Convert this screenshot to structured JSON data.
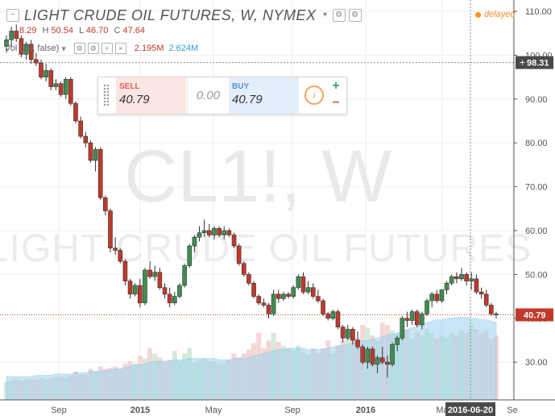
{
  "header": {
    "title": "LIGHT CRUDE OIL FUTURES, W, NYMEX",
    "ohlc_text": "8.29",
    "h_label": "H",
    "h_value": "50.54",
    "l_label": "L",
    "l_value": "46.70",
    "c_label": "C",
    "c_value": "47.64",
    "vol_label": "Vol (20, false)",
    "vol_value1": "2.195M",
    "vol_value2": "2.624M",
    "delayed_label": "delayed"
  },
  "trade_panel": {
    "sell_label": "SELL",
    "sell_price": "40.79",
    "spread": "0.00",
    "buy_label": "BUY",
    "buy_price": "40.79",
    "info_glyph": "i",
    "plus_glyph": "+",
    "minus_glyph": "−"
  },
  "watermark": {
    "symbol": "CL1!, W",
    "name": "LIGHT CRUDE OIL FUTURES"
  },
  "colors": {
    "up": "#3f8d52",
    "down": "#c0392b",
    "volume_up": "#cfe8d3",
    "volume_down": "#f3d3d3",
    "volume_ma": "#9fd3f0",
    "price_line": "#c0392b",
    "crosshair": "#888888",
    "grid": "#eeeeee"
  },
  "crosshair": {
    "price_label": "98.31",
    "date_label": "2016-06-20"
  },
  "chart_data": {
    "type": "candlestick",
    "symbol": "CL1!",
    "interval": "W",
    "exchange": "NYMEX",
    "y_ticks": [
      "110.00",
      "100.00",
      "90.00",
      "80.00",
      "70.00",
      "60.00",
      "50.00",
      "40.00",
      "30.00"
    ],
    "x_ticks": [
      "Sep",
      "2015",
      "May",
      "Sep",
      "2016",
      "Ma",
      "Se"
    ],
    "ylim": [
      20,
      112
    ],
    "last_price_label": "40.79",
    "candles": [
      [
        102.0,
        104.5,
        100.5,
        103.5
      ],
      [
        103.5,
        106.5,
        102.0,
        105.5
      ],
      [
        105.5,
        107.0,
        103.0,
        103.8
      ],
      [
        103.8,
        104.5,
        99.5,
        100.2
      ],
      [
        100.2,
        103.0,
        99.0,
        102.5
      ],
      [
        102.5,
        103.5,
        98.0,
        99.0
      ],
      [
        99.0,
        100.5,
        97.5,
        98.2
      ],
      [
        98.2,
        99.0,
        94.5,
        95.0
      ],
      [
        95.0,
        98.0,
        94.0,
        96.5
      ],
      [
        96.5,
        97.0,
        92.0,
        92.8
      ],
      [
        92.8,
        94.5,
        92.0,
        93.5
      ],
      [
        93.5,
        94.0,
        90.5,
        91.0
      ],
      [
        91.0,
        95.0,
        90.0,
        94.5
      ],
      [
        94.5,
        95.0,
        88.5,
        89.0
      ],
      [
        89.0,
        89.5,
        84.5,
        85.0
      ],
      [
        85.0,
        86.0,
        81.0,
        81.5
      ],
      [
        81.5,
        82.5,
        79.0,
        80.0
      ],
      [
        80.0,
        80.5,
        75.5,
        76.0
      ],
      [
        76.0,
        79.0,
        73.5,
        78.5
      ],
      [
        78.5,
        79.0,
        67.0,
        67.5
      ],
      [
        67.5,
        68.0,
        63.5,
        64.5
      ],
      [
        64.5,
        65.0,
        55.0,
        56.0
      ],
      [
        56.0,
        58.5,
        54.5,
        55.5
      ],
      [
        55.5,
        56.0,
        52.5,
        53.0
      ],
      [
        53.0,
        53.5,
        47.5,
        48.5
      ],
      [
        48.5,
        49.0,
        44.5,
        45.5
      ],
      [
        45.5,
        48.0,
        45.0,
        47.5
      ],
      [
        47.5,
        49.0,
        42.5,
        43.5
      ],
      [
        43.5,
        51.5,
        43.0,
        51.0
      ],
      [
        51.0,
        53.0,
        49.0,
        49.5
      ],
      [
        49.5,
        52.0,
        48.5,
        50.5
      ],
      [
        50.5,
        51.5,
        46.5,
        47.0
      ],
      [
        47.0,
        48.0,
        44.5,
        45.5
      ],
      [
        45.5,
        47.0,
        42.5,
        43.5
      ],
      [
        43.5,
        46.0,
        43.0,
        45.0
      ],
      [
        45.0,
        48.0,
        44.5,
        47.5
      ],
      [
        47.5,
        52.5,
        47.0,
        52.0
      ],
      [
        52.0,
        57.0,
        51.5,
        56.5
      ],
      [
        56.5,
        59.0,
        55.0,
        58.5
      ],
      [
        58.5,
        61.0,
        57.5,
        59.5
      ],
      [
        59.5,
        62.5,
        58.5,
        60.0
      ],
      [
        60.0,
        61.5,
        58.5,
        59.0
      ],
      [
        59.0,
        61.0,
        58.0,
        60.5
      ],
      [
        60.5,
        61.0,
        58.5,
        59.0
      ],
      [
        59.0,
        61.0,
        58.0,
        60.0
      ],
      [
        60.0,
        60.5,
        58.5,
        59.0
      ],
      [
        59.0,
        59.5,
        56.0,
        56.5
      ],
      [
        56.5,
        57.0,
        52.0,
        52.5
      ],
      [
        52.5,
        53.0,
        49.5,
        50.0
      ],
      [
        50.0,
        50.5,
        47.5,
        48.0
      ],
      [
        48.0,
        48.5,
        44.5,
        45.0
      ],
      [
        45.0,
        45.5,
        43.0,
        43.5
      ],
      [
        43.5,
        44.5,
        42.5,
        43.0
      ],
      [
        43.0,
        43.5,
        40.0,
        41.0
      ],
      [
        41.0,
        46.5,
        40.5,
        45.5
      ],
      [
        45.5,
        46.5,
        43.5,
        44.5
      ],
      [
        44.5,
        46.0,
        44.0,
        45.5
      ],
      [
        45.5,
        46.0,
        44.5,
        45.0
      ],
      [
        45.0,
        47.5,
        44.5,
        47.0
      ],
      [
        47.0,
        50.0,
        46.5,
        49.5
      ],
      [
        49.5,
        50.5,
        45.5,
        46.0
      ],
      [
        46.0,
        48.5,
        45.5,
        47.0
      ],
      [
        47.0,
        48.0,
        44.5,
        45.0
      ],
      [
        45.0,
        46.5,
        43.5,
        44.0
      ],
      [
        44.0,
        44.5,
        40.5,
        41.0
      ],
      [
        41.0,
        41.5,
        39.5,
        40.0
      ],
      [
        40.0,
        42.0,
        39.5,
        41.5
      ],
      [
        41.5,
        42.0,
        37.5,
        38.0
      ],
      [
        38.0,
        38.5,
        34.5,
        35.5
      ],
      [
        35.5,
        38.5,
        35.0,
        37.5
      ],
      [
        37.5,
        38.0,
        34.0,
        35.0
      ],
      [
        35.0,
        37.0,
        33.0,
        33.5
      ],
      [
        33.5,
        34.0,
        29.5,
        30.0
      ],
      [
        30.0,
        33.5,
        28.5,
        33.0
      ],
      [
        33.0,
        33.5,
        29.0,
        29.5
      ],
      [
        29.5,
        31.5,
        27.5,
        31.0
      ],
      [
        31.0,
        33.5,
        29.5,
        30.0
      ],
      [
        30.0,
        31.5,
        26.5,
        29.5
      ],
      [
        29.5,
        34.5,
        29.0,
        34.0
      ],
      [
        34.0,
        36.0,
        32.5,
        35.5
      ],
      [
        35.5,
        40.5,
        35.0,
        40.0
      ],
      [
        40.0,
        41.5,
        38.0,
        39.5
      ],
      [
        39.5,
        42.0,
        38.5,
        41.5
      ],
      [
        41.5,
        42.0,
        38.0,
        38.5
      ],
      [
        38.5,
        41.5,
        37.5,
        41.0
      ],
      [
        41.0,
        44.5,
        40.5,
        44.0
      ],
      [
        44.0,
        46.0,
        42.5,
        45.5
      ],
      [
        45.5,
        46.5,
        43.5,
        44.0
      ],
      [
        44.0,
        46.5,
        43.5,
        46.5
      ],
      [
        46.5,
        48.5,
        45.5,
        48.0
      ],
      [
        48.0,
        50.0,
        47.5,
        49.5
      ],
      [
        49.5,
        50.5,
        48.0,
        49.0
      ],
      [
        49.0,
        51.5,
        48.5,
        50.0
      ],
      [
        50.0,
        50.5,
        47.5,
        48.5
      ],
      [
        48.5,
        50.5,
        46.5,
        49.0
      ],
      [
        49.0,
        50.0,
        45.5,
        46.0
      ],
      [
        46.0,
        47.0,
        44.5,
        45.5
      ],
      [
        45.5,
        46.5,
        42.5,
        43.0
      ],
      [
        43.0,
        43.5,
        40.5,
        41.0
      ],
      [
        41.0,
        41.5,
        40.0,
        40.79
      ]
    ],
    "volume_mfrac": [
      0.14,
      0.15,
      0.16,
      0.15,
      0.16,
      0.16,
      0.16,
      0.17,
      0.16,
      0.17,
      0.18,
      0.18,
      0.17,
      0.19,
      0.22,
      0.2,
      0.2,
      0.24,
      0.22,
      0.26,
      0.24,
      0.25,
      0.26,
      0.24,
      0.28,
      0.3,
      0.28,
      0.34,
      0.32,
      0.4,
      0.36,
      0.33,
      0.3,
      0.31,
      0.38,
      0.3,
      0.36,
      0.4,
      0.29,
      0.31,
      0.32,
      0.3,
      0.3,
      0.28,
      0.29,
      0.31,
      0.36,
      0.33,
      0.36,
      0.39,
      0.44,
      0.52,
      0.4,
      0.46,
      0.52,
      0.45,
      0.42,
      0.4,
      0.38,
      0.42,
      0.37,
      0.35,
      0.4,
      0.36,
      0.4,
      0.46,
      0.36,
      0.42,
      0.46,
      0.5,
      0.54,
      0.48,
      0.58,
      0.56,
      0.5,
      0.46,
      0.6,
      0.58,
      0.54,
      0.52,
      0.5,
      0.55,
      0.48,
      0.52,
      0.5,
      0.55,
      0.52,
      0.48,
      0.5,
      0.48,
      0.52,
      0.5,
      0.54,
      0.52,
      0.58,
      0.55,
      0.52,
      0.54,
      0.47,
      0.5
    ],
    "volume_ma_frac": [
      0.18,
      0.18,
      0.18,
      0.18,
      0.18,
      0.18,
      0.19,
      0.19,
      0.19,
      0.19,
      0.2,
      0.2,
      0.2,
      0.2,
      0.21,
      0.21,
      0.21,
      0.22,
      0.22,
      0.22,
      0.23,
      0.23,
      0.24,
      0.24,
      0.25,
      0.26,
      0.27,
      0.27,
      0.28,
      0.29,
      0.3,
      0.3,
      0.3,
      0.3,
      0.31,
      0.31,
      0.31,
      0.32,
      0.32,
      0.32,
      0.32,
      0.32,
      0.32,
      0.31,
      0.31,
      0.31,
      0.32,
      0.32,
      0.32,
      0.33,
      0.34,
      0.35,
      0.36,
      0.37,
      0.38,
      0.39,
      0.39,
      0.4,
      0.4,
      0.4,
      0.4,
      0.39,
      0.39,
      0.39,
      0.39,
      0.4,
      0.41,
      0.42,
      0.42,
      0.43,
      0.44,
      0.45,
      0.46,
      0.46,
      0.47,
      0.48,
      0.49,
      0.5,
      0.51,
      0.52,
      0.53,
      0.54,
      0.56,
      0.57,
      0.58,
      0.6,
      0.61,
      0.62,
      0.62,
      0.63,
      0.63,
      0.64,
      0.64,
      0.64,
      0.63,
      0.63,
      0.62,
      0.62,
      0.61,
      0.6
    ]
  }
}
